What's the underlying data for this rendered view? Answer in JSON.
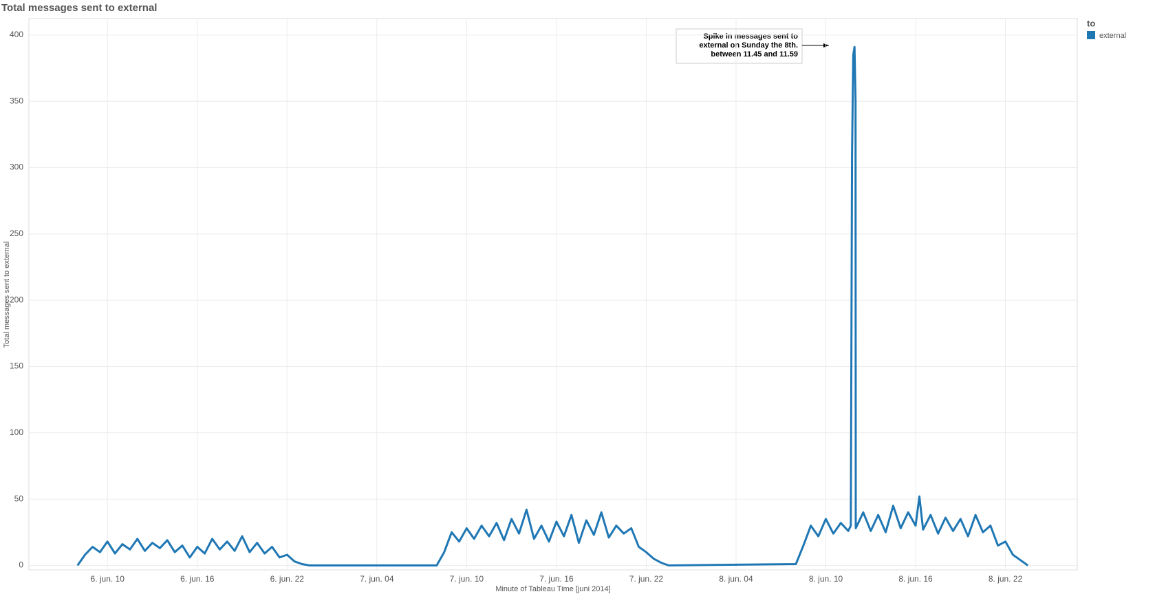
{
  "chart_data": {
    "type": "line",
    "title": "Total messages sent to external",
    "x_label": "Minute of Tableau Time [juni 2014]",
    "y_label": "Total messages sent to external",
    "legend_title": "to",
    "annotation": [
      "Spike in messages sent to",
      "external on Sunday the 8th.",
      "between 11.45 and 11.59"
    ],
    "grid": true,
    "xlim": [
      "2014-06-06T04:45",
      "2014-06-09T02:48"
    ],
    "xticks": [
      {
        "value": "2014-06-06T10:00",
        "label": "6. jun. 10"
      },
      {
        "value": "2014-06-06T16:00",
        "label": "6. jun. 16"
      },
      {
        "value": "2014-06-06T22:00",
        "label": "6. jun. 22"
      },
      {
        "value": "2014-06-07T04:00",
        "label": "7. jun. 04"
      },
      {
        "value": "2014-06-07T10:00",
        "label": "7. jun. 10"
      },
      {
        "value": "2014-06-07T16:00",
        "label": "7. jun. 16"
      },
      {
        "value": "2014-06-07T22:00",
        "label": "7. jun. 22"
      },
      {
        "value": "2014-06-08T04:00",
        "label": "8. jun. 04"
      },
      {
        "value": "2014-06-08T10:00",
        "label": "8. jun. 10"
      },
      {
        "value": "2014-06-08T16:00",
        "label": "8. jun. 16"
      },
      {
        "value": "2014-06-08T22:00",
        "label": "8. jun. 22"
      }
    ],
    "ylim": [
      -3.4,
      412.4
    ],
    "yticks": [
      0,
      50,
      100,
      150,
      200,
      250,
      300,
      350,
      400
    ],
    "x": [
      "2014-06-06T08:00",
      "2014-06-06T08:30",
      "2014-06-06T09:00",
      "2014-06-06T09:30",
      "2014-06-06T10:00",
      "2014-06-06T10:30",
      "2014-06-06T11:00",
      "2014-06-06T11:30",
      "2014-06-06T12:00",
      "2014-06-06T12:30",
      "2014-06-06T13:00",
      "2014-06-06T13:30",
      "2014-06-06T14:00",
      "2014-06-06T14:30",
      "2014-06-06T15:00",
      "2014-06-06T15:30",
      "2014-06-06T16:00",
      "2014-06-06T16:30",
      "2014-06-06T17:00",
      "2014-06-06T17:30",
      "2014-06-06T18:00",
      "2014-06-06T18:30",
      "2014-06-06T19:00",
      "2014-06-06T19:30",
      "2014-06-06T20:00",
      "2014-06-06T20:30",
      "2014-06-06T21:00",
      "2014-06-06T21:30",
      "2014-06-06T22:00",
      "2014-06-06T22:30",
      "2014-06-06T23:00",
      "2014-06-06T23:30",
      "2014-06-07T08:00",
      "2014-06-07T08:30",
      "2014-06-07T09:00",
      "2014-06-07T09:30",
      "2014-06-07T10:00",
      "2014-06-07T10:30",
      "2014-06-07T11:00",
      "2014-06-07T11:30",
      "2014-06-07T12:00",
      "2014-06-07T12:30",
      "2014-06-07T13:00",
      "2014-06-07T13:30",
      "2014-06-07T14:00",
      "2014-06-07T14:30",
      "2014-06-07T15:00",
      "2014-06-07T15:30",
      "2014-06-07T16:00",
      "2014-06-07T16:30",
      "2014-06-07T17:00",
      "2014-06-07T17:30",
      "2014-06-07T18:00",
      "2014-06-07T18:30",
      "2014-06-07T19:00",
      "2014-06-07T19:30",
      "2014-06-07T20:00",
      "2014-06-07T20:30",
      "2014-06-07T21:00",
      "2014-06-07T21:30",
      "2014-06-07T22:00",
      "2014-06-07T22:30",
      "2014-06-07T23:00",
      "2014-06-07T23:30",
      "2014-06-08T08:00",
      "2014-06-08T08:30",
      "2014-06-08T09:00",
      "2014-06-08T09:30",
      "2014-06-08T10:00",
      "2014-06-08T10:30",
      "2014-06-08T11:00",
      "2014-06-08T11:30",
      "2014-06-08T11:40",
      "2014-06-08T11:45",
      "2014-06-08T11:50",
      "2014-06-08T11:55",
      "2014-06-08T11:59",
      "2014-06-08T12:00",
      "2014-06-08T12:30",
      "2014-06-08T13:00",
      "2014-06-08T13:30",
      "2014-06-08T14:00",
      "2014-06-08T14:30",
      "2014-06-08T15:00",
      "2014-06-08T15:30",
      "2014-06-08T16:00",
      "2014-06-08T16:15",
      "2014-06-08T16:30",
      "2014-06-08T17:00",
      "2014-06-08T17:30",
      "2014-06-08T18:00",
      "2014-06-08T18:30",
      "2014-06-08T19:00",
      "2014-06-08T19:30",
      "2014-06-08T20:00",
      "2014-06-08T20:30",
      "2014-06-08T21:00",
      "2014-06-08T21:30",
      "2014-06-08T22:00",
      "2014-06-08T22:30",
      "2014-06-08T23:00",
      "2014-06-08T23:30"
    ],
    "series": [
      {
        "name": "external",
        "color": "#1f77b4",
        "values": [
          0,
          8,
          14,
          10,
          18,
          9,
          16,
          12,
          20,
          11,
          17,
          13,
          19,
          10,
          15,
          6,
          14,
          9,
          20,
          12,
          18,
          11,
          22,
          10,
          17,
          9,
          14,
          6,
          8,
          3,
          1,
          0,
          0,
          10,
          25,
          18,
          28,
          20,
          30,
          22,
          32,
          19,
          35,
          24,
          42,
          20,
          30,
          18,
          33,
          22,
          38,
          17,
          34,
          23,
          40,
          21,
          30,
          24,
          28,
          14,
          10,
          5,
          2,
          0,
          1,
          15,
          30,
          22,
          35,
          24,
          32,
          26,
          30,
          310,
          385,
          391,
          350,
          28,
          40,
          26,
          38,
          25,
          45,
          28,
          40,
          30,
          52,
          27,
          38,
          24,
          36,
          26,
          35,
          22,
          38,
          25,
          30,
          15,
          18,
          8,
          4,
          0
        ]
      }
    ]
  }
}
